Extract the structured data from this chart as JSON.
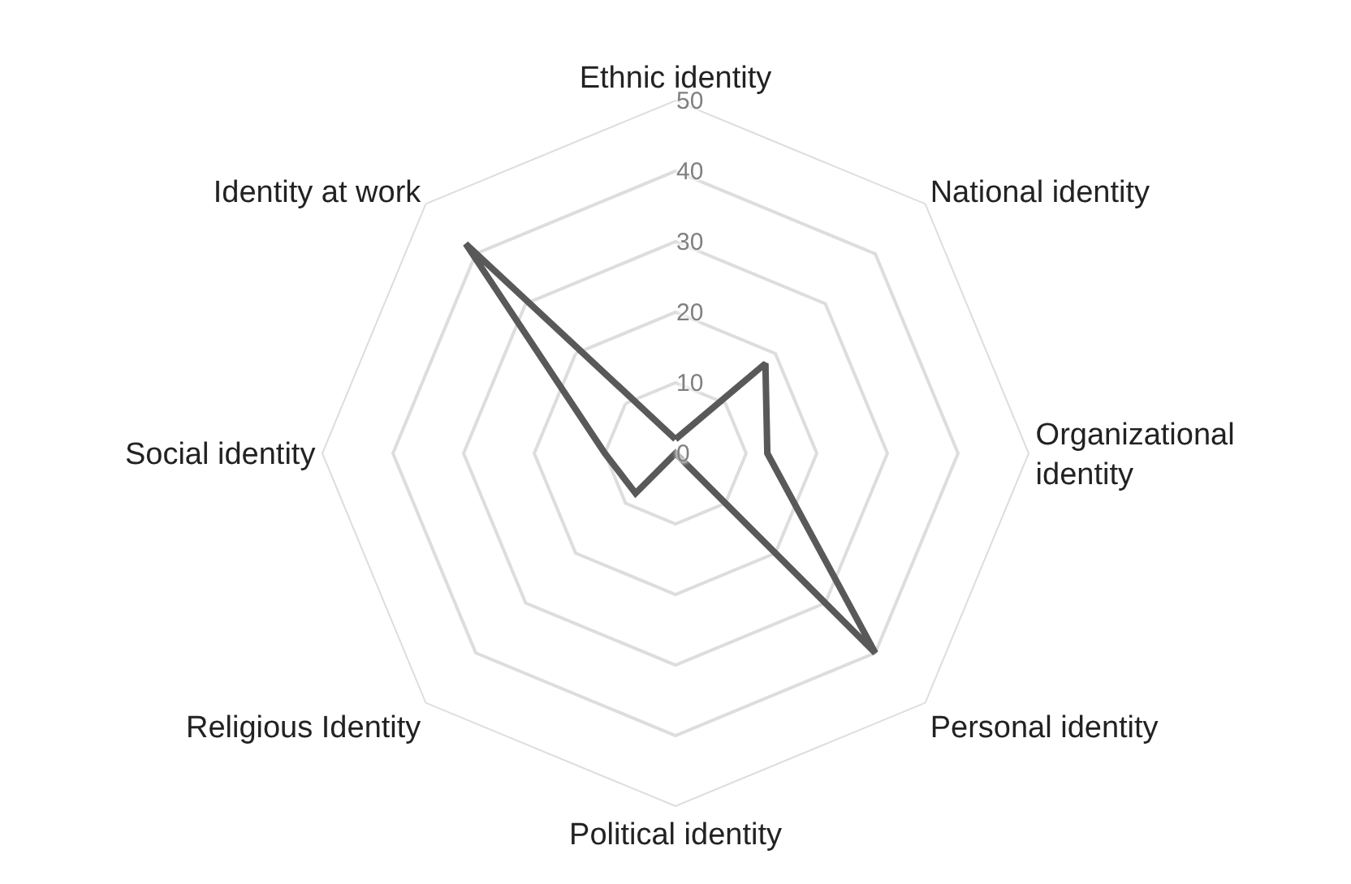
{
  "chart_data": {
    "type": "radar",
    "categories": [
      "Ethnic identity",
      "National identity",
      "Organizational identity",
      "Personal identity",
      "Political identity",
      "Religious Identity",
      "Social identity",
      "Identity at work"
    ],
    "series": [
      {
        "color": "#595959",
        "values": [
          2,
          18,
          13,
          40,
          0,
          8,
          10,
          42
        ]
      }
    ],
    "ylim": [
      0,
      50
    ],
    "yticks": [
      0,
      10,
      20,
      30,
      40,
      50
    ],
    "grid": true,
    "marker": "none",
    "line_style": "solid"
  }
}
